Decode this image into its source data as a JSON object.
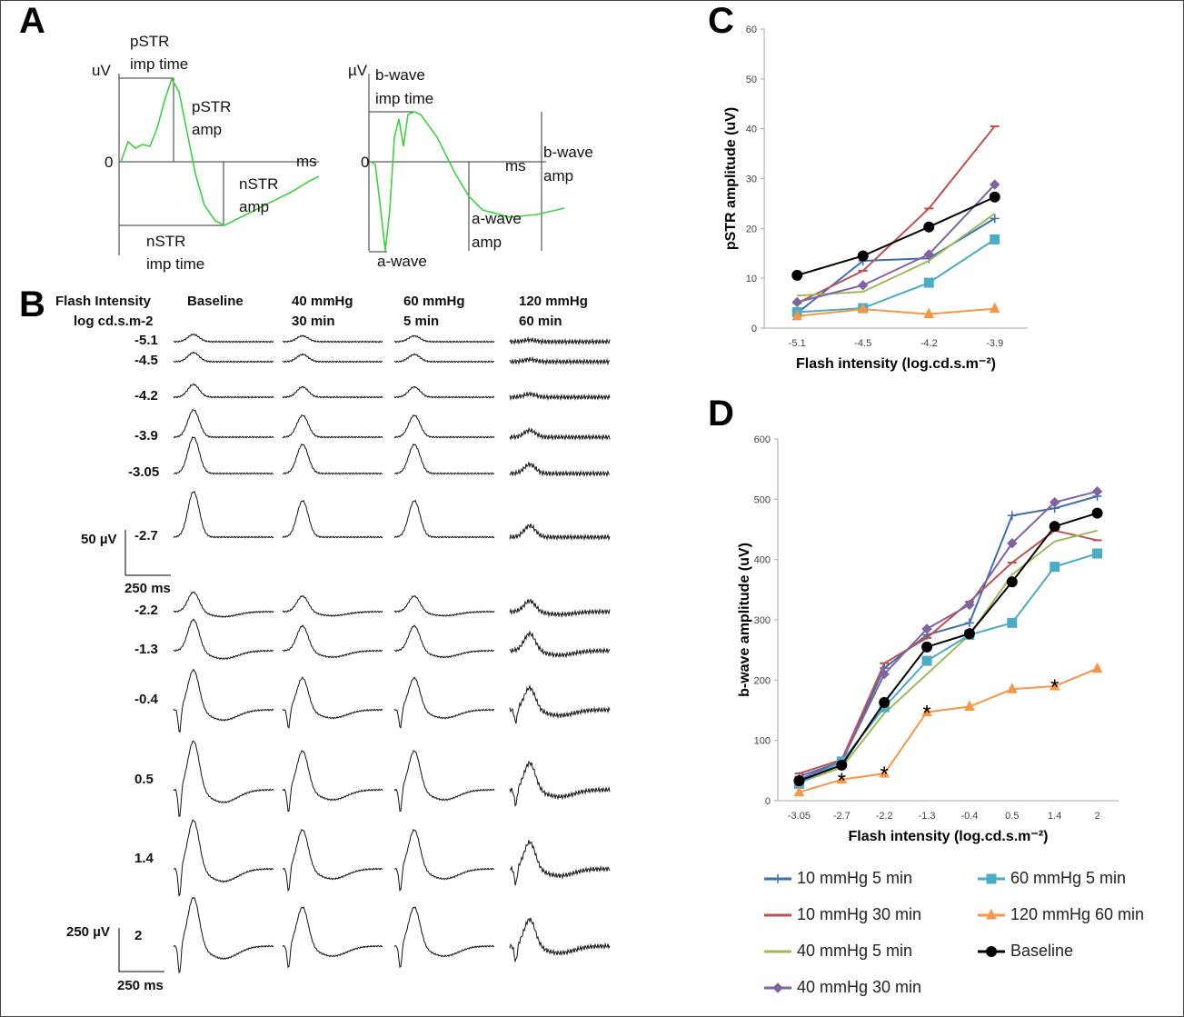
{
  "panels": {
    "a": "A",
    "b": "B",
    "c": "C",
    "d": "D"
  },
  "panel_a": {
    "left": {
      "y_unit": "uV",
      "x_unit": "ms",
      "origin": "0",
      "labels": [
        "pSTR",
        "imp time",
        "pSTR",
        "amp",
        "nSTR",
        "amp",
        "nSTR",
        "imp time"
      ]
    },
    "right": {
      "y_unit": "µV",
      "x_unit": "ms",
      "origin": "0",
      "labels": [
        "b-wave",
        "imp time",
        "b-wave",
        "amp",
        "a-wave",
        "amp",
        "a-wave"
      ]
    },
    "trace_color": "#3fd13f"
  },
  "panel_b": {
    "header": [
      "Flash Intensity",
      "log cd.s.m-2"
    ],
    "columns": [
      [
        "Baseline",
        ""
      ],
      [
        "40 mmHg",
        "30 min"
      ],
      [
        "60 mmHg",
        "5 min"
      ],
      [
        "120 mmHg",
        "60 min"
      ]
    ],
    "intensities": [
      "-5.1",
      "-4.5",
      "-4.2",
      "-3.9",
      "-3.05",
      "-2.7",
      "-2.2",
      "-1.3",
      "-0.4",
      "0.5",
      "1.4",
      "2"
    ],
    "scale_top": {
      "v": "50 µV",
      "t": "250 ms"
    },
    "scale_bottom": {
      "v": "250 µV",
      "t": "250 ms"
    }
  },
  "chart_data": [
    {
      "type": "line",
      "panel": "C",
      "xlabel": "Flash intensity (log.cd.s.m⁻²)",
      "ylabel": "pSTR amplitude (uV)",
      "categories": [
        "-5.1",
        "-4.5",
        "-4.2",
        "-3.9"
      ],
      "ylim": [
        0,
        60
      ],
      "yticks": [
        "0",
        "10",
        "20",
        "30",
        "40",
        "50",
        "60"
      ],
      "series": [
        {
          "name": "10 mmHg 5 min",
          "color": "#3a6fb0",
          "marker": "plus",
          "values": [
            3,
            13.5,
            14,
            22
          ]
        },
        {
          "name": "10 mmHg 30 min",
          "color": "#c0504d",
          "marker": "dash",
          "values": [
            5,
            11.5,
            24,
            40.5
          ]
        },
        {
          "name": "40 mmHg 5 min",
          "color": "#9bbb59",
          "marker": "none",
          "values": [
            6.5,
            7.3,
            13.5,
            23
          ]
        },
        {
          "name": "40 mmHg 30 min",
          "color": "#8064a2",
          "marker": "diamond",
          "values": [
            5.2,
            8.6,
            14.8,
            28.8
          ]
        },
        {
          "name": "60 mmHg 5 min",
          "color": "#4bacc6",
          "marker": "square",
          "values": [
            3.2,
            4,
            9.1,
            17.8
          ]
        },
        {
          "name": "120 mmHg 60 min",
          "color": "#f79646",
          "marker": "triangle",
          "values": [
            2.4,
            3.8,
            2.8,
            3.9
          ]
        },
        {
          "name": "Baseline",
          "color": "#000000",
          "marker": "circle",
          "values": [
            10.6,
            14.5,
            20.3,
            26.3
          ]
        }
      ]
    },
    {
      "type": "line",
      "panel": "D",
      "xlabel": "Flash intensity (log.cd.s.m⁻²)",
      "ylabel": "b-wave amplitude (uV)",
      "categories": [
        "-3.05",
        "-2.7",
        "-2.2",
        "-1.3",
        "-0.4",
        "0.5",
        "1.4",
        "2"
      ],
      "ylim": [
        0,
        600
      ],
      "yticks": [
        "0",
        "100",
        "200",
        "300",
        "400",
        "500",
        "600"
      ],
      "annotations": {
        "text": "*",
        "series": "120 mmHg 60 min",
        "at": [
          "-2.7",
          "-2.2",
          "-1.3",
          "1.4"
        ]
      },
      "legend": "bottom",
      "series": [
        {
          "name": "10 mmHg 5 min",
          "color": "#3a6fb0",
          "marker": "plus",
          "values": [
            40,
            65,
            220,
            275,
            295,
            473,
            485,
            505
          ]
        },
        {
          "name": "10 mmHg 30 min",
          "color": "#c0504d",
          "marker": "dash",
          "values": [
            45,
            68,
            228,
            270,
            330,
            395,
            448,
            432
          ]
        },
        {
          "name": "40 mmHg 5 min",
          "color": "#9bbb59",
          "marker": "none",
          "values": [
            30,
            55,
            145,
            210,
            275,
            375,
            430,
            448
          ]
        },
        {
          "name": "40 mmHg 30 min",
          "color": "#8064a2",
          "marker": "diamond",
          "values": [
            35,
            65,
            210,
            285,
            325,
            427,
            495,
            513
          ]
        },
        {
          "name": "60 mmHg 5 min",
          "color": "#4bacc6",
          "marker": "square",
          "values": [
            28,
            65,
            155,
            232,
            275,
            295,
            388,
            410
          ]
        },
        {
          "name": "120 mmHg 60 min",
          "color": "#f79646",
          "marker": "triangle",
          "values": [
            14,
            35,
            45,
            147,
            156,
            185,
            190,
            219
          ]
        },
        {
          "name": "Baseline",
          "color": "#000000",
          "marker": "circle",
          "values": [
            33,
            59,
            163,
            255,
            277,
            363,
            455,
            477
          ]
        }
      ]
    }
  ]
}
